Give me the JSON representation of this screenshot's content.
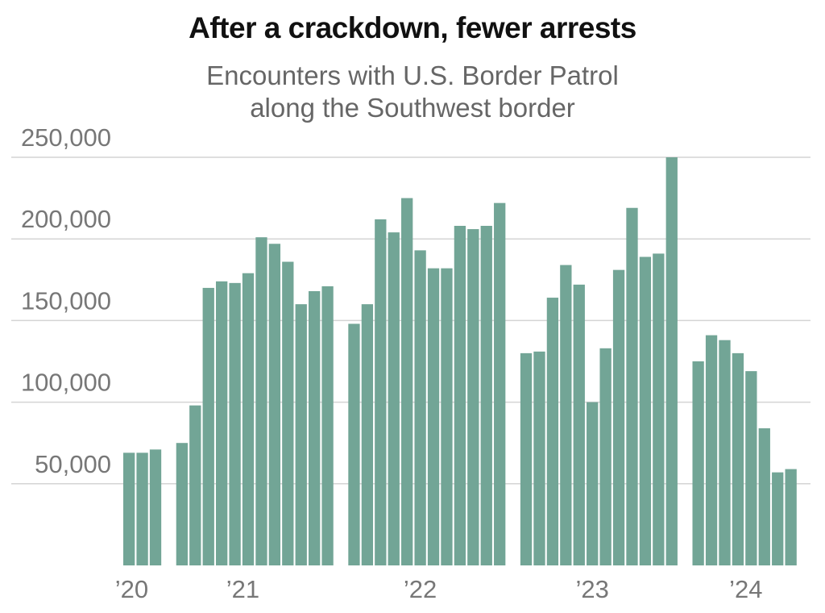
{
  "title": "After a crackdown, fewer arrests",
  "subtitle_lines": [
    "Encounters with U.S. Border Patrol",
    "along the Southwest border"
  ],
  "chart_data": {
    "type": "bar",
    "title": "After a crackdown, fewer arrests",
    "subtitle": "Encounters with U.S. Border Patrol along the Southwest border",
    "xlabel": "",
    "ylabel": "",
    "ylim": [
      0,
      250000
    ],
    "y_ticks": [
      50000,
      100000,
      150000,
      200000,
      250000
    ],
    "y_tick_labels": [
      "50,000",
      "100,000",
      "150,000",
      "200,000",
      "250,000"
    ],
    "x_tick_labels": [
      "’20",
      "’21",
      "’22",
      "’23",
      "’24"
    ],
    "grid": true,
    "legend": "none",
    "bar_color": "#72a596",
    "gridline_color": "#d4d4d4",
    "groups": [
      {
        "label": "’20",
        "values": [
          69000,
          69000,
          71000
        ]
      },
      {
        "label": "’21",
        "values": [
          75000,
          98000,
          170000,
          174000,
          173000,
          179000,
          201000,
          197000,
          186000,
          160000,
          168000,
          171000
        ]
      },
      {
        "label": "’22",
        "values": [
          148000,
          160000,
          212000,
          204000,
          225000,
          193000,
          182000,
          182000,
          208000,
          206000,
          208000,
          222000
        ]
      },
      {
        "label": "’23",
        "values": [
          130000,
          131000,
          164000,
          184000,
          172000,
          100000,
          133000,
          181000,
          219000,
          189000,
          191000,
          250000
        ]
      },
      {
        "label": "’24",
        "values": [
          125000,
          141000,
          138000,
          130000,
          119000,
          84000,
          57000,
          59000
        ]
      }
    ]
  }
}
